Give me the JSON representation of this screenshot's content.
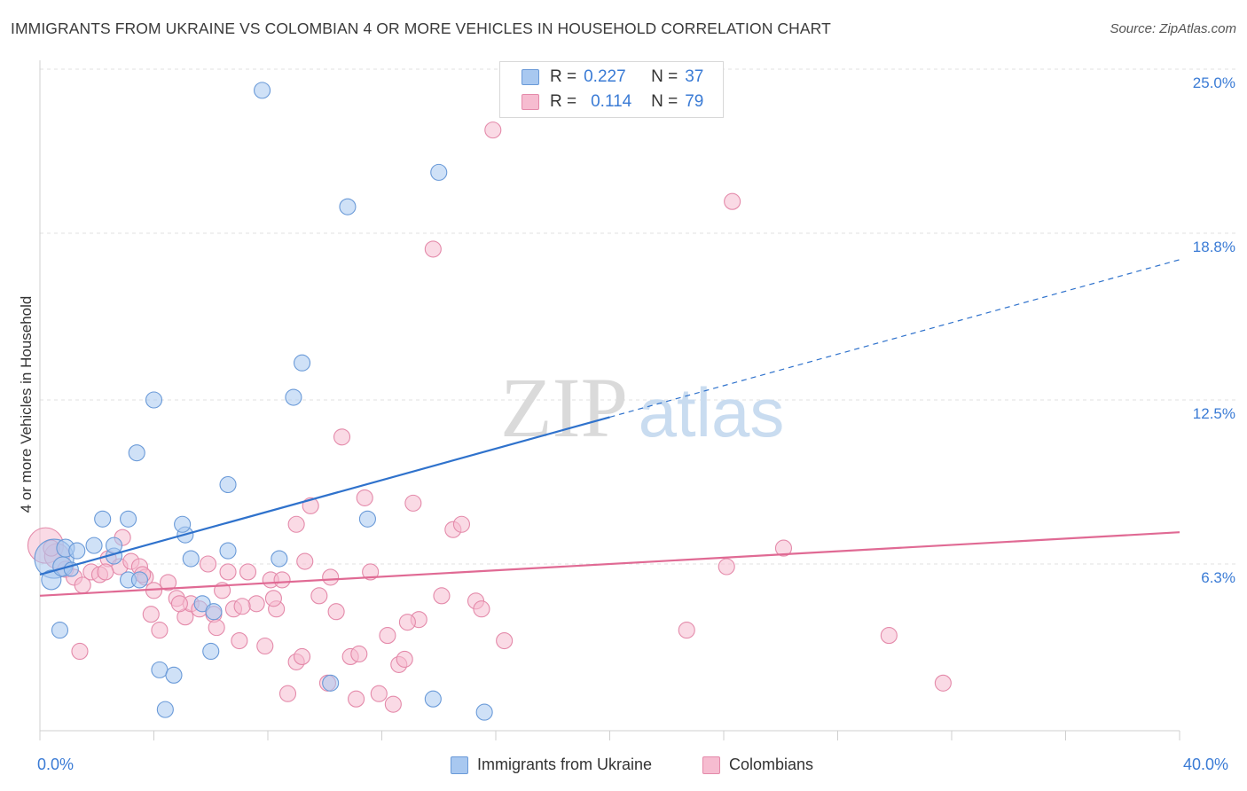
{
  "header": {
    "title": "IMMIGRANTS FROM UKRAINE VS COLOMBIAN 4 OR MORE VEHICLES IN HOUSEHOLD CORRELATION CHART",
    "source": "Source: ZipAtlas.com"
  },
  "watermark": {
    "zip": "ZIP",
    "atlas": "atlas"
  },
  "legend_top": {
    "rows": [
      {
        "r_label": "R =",
        "r_value": "0.227",
        "n_label": "N =",
        "n_value": "37"
      },
      {
        "r_label": "R =",
        "r_value": "0.114",
        "n_label": "N =",
        "n_value": "79"
      }
    ]
  },
  "legend_bottom": {
    "series_a": "Immigrants from Ukraine",
    "series_b": "Colombians"
  },
  "colors": {
    "ukraine_fill": "#a8c8f0",
    "ukraine_stroke": "#6a9ad8",
    "ukraine_line": "#2f72cc",
    "colombia_fill": "#f6bcd0",
    "colombia_stroke": "#e48aaa",
    "colombia_line": "#e06a94",
    "tick_text": "#3a7bd5"
  },
  "chart_data": {
    "type": "scatter",
    "title": "IMMIGRANTS FROM UKRAINE VS COLOMBIAN 4 OR MORE VEHICLES IN HOUSEHOLD CORRELATION CHART",
    "xlabel": "",
    "ylabel": "4 or more Vehicles in Household",
    "xlim": [
      0,
      40
    ],
    "ylim": [
      0,
      25
    ],
    "x_tick_labels": [
      "0.0%",
      "40.0%"
    ],
    "y_ticks": [
      6.3,
      12.5,
      18.8,
      25.0
    ],
    "y_tick_labels": [
      "6.3%",
      "12.5%",
      "18.8%",
      "25.0%"
    ],
    "grid": true,
    "series": [
      {
        "name": "Immigrants from Ukraine",
        "R": 0.227,
        "N": 37,
        "trend": {
          "x0": 0,
          "y0": 5.9,
          "x1": 40,
          "y1": 17.8,
          "solid_until_x": 20
        },
        "points": [
          [
            0.5,
            6.5,
            22
          ],
          [
            0.9,
            6.9,
            10
          ],
          [
            0.4,
            5.7,
            11
          ],
          [
            0.8,
            6.2,
            11
          ],
          [
            1.3,
            6.8,
            9
          ],
          [
            1.9,
            7.0,
            9
          ],
          [
            1.1,
            6.1,
            8
          ],
          [
            2.6,
            6.6,
            9
          ],
          [
            3.1,
            5.7,
            9
          ],
          [
            3.5,
            5.7,
            9
          ],
          [
            2.2,
            8.0,
            9
          ],
          [
            3.1,
            8.0,
            9
          ],
          [
            2.6,
            7.0,
            9
          ],
          [
            5.1,
            7.4,
            9
          ],
          [
            5.0,
            7.8,
            9
          ],
          [
            3.4,
            10.5,
            9
          ],
          [
            4.0,
            12.5,
            9
          ],
          [
            6.6,
            9.3,
            9
          ],
          [
            7.8,
            24.2,
            9
          ],
          [
            8.9,
            12.6,
            9
          ],
          [
            9.2,
            13.9,
            9
          ],
          [
            10.8,
            19.8,
            9
          ],
          [
            11.5,
            8.0,
            9
          ],
          [
            14.0,
            21.1,
            9
          ],
          [
            0.7,
            3.8,
            9
          ],
          [
            4.2,
            2.3,
            9
          ],
          [
            4.7,
            2.1,
            9
          ],
          [
            4.4,
            0.8,
            9
          ],
          [
            6.0,
            3.0,
            9
          ],
          [
            10.2,
            1.8,
            9
          ],
          [
            13.8,
            1.2,
            9
          ],
          [
            15.6,
            0.7,
            9
          ],
          [
            5.3,
            6.5,
            9
          ],
          [
            6.6,
            6.8,
            9
          ],
          [
            8.4,
            6.5,
            9
          ],
          [
            5.7,
            4.8,
            9
          ],
          [
            6.1,
            4.5,
            9
          ]
        ]
      },
      {
        "name": "Colombians",
        "R": 0.114,
        "N": 79,
        "trend": {
          "x0": 0,
          "y0": 5.1,
          "x1": 40,
          "y1": 7.5,
          "solid_until_x": 40
        },
        "points": [
          [
            0.2,
            7.0,
            20
          ],
          [
            0.6,
            6.6,
            14
          ],
          [
            0.9,
            6.1,
            9
          ],
          [
            1.2,
            5.8,
            9
          ],
          [
            1.5,
            5.5,
            9
          ],
          [
            1.8,
            6.0,
            9
          ],
          [
            2.1,
            5.9,
            9
          ],
          [
            2.4,
            6.5,
            9
          ],
          [
            2.8,
            6.2,
            9
          ],
          [
            2.9,
            7.3,
            9
          ],
          [
            3.2,
            6.4,
            9
          ],
          [
            3.5,
            6.2,
            9
          ],
          [
            3.7,
            5.8,
            9
          ],
          [
            4.0,
            5.3,
            9
          ],
          [
            4.2,
            3.8,
            9
          ],
          [
            3.9,
            4.4,
            9
          ],
          [
            4.5,
            5.6,
            9
          ],
          [
            4.8,
            5.0,
            9
          ],
          [
            5.1,
            4.3,
            9
          ],
          [
            5.3,
            4.8,
            9
          ],
          [
            5.6,
            4.6,
            9
          ],
          [
            5.9,
            6.3,
            9
          ],
          [
            6.1,
            4.4,
            9
          ],
          [
            6.4,
            5.3,
            9
          ],
          [
            6.6,
            6.0,
            9
          ],
          [
            6.8,
            4.6,
            9
          ],
          [
            7.0,
            3.4,
            9
          ],
          [
            7.3,
            6.0,
            9
          ],
          [
            7.6,
            4.8,
            9
          ],
          [
            7.9,
            3.2,
            9
          ],
          [
            8.1,
            5.7,
            9
          ],
          [
            8.3,
            4.6,
            9
          ],
          [
            8.5,
            5.7,
            9
          ],
          [
            8.7,
            1.4,
            9
          ],
          [
            9.0,
            2.6,
            9
          ],
          [
            9.2,
            2.8,
            9
          ],
          [
            9.5,
            8.5,
            9
          ],
          [
            9.0,
            7.8,
            9
          ],
          [
            9.8,
            5.1,
            9
          ],
          [
            10.1,
            1.8,
            9
          ],
          [
            10.4,
            4.5,
            9
          ],
          [
            10.6,
            11.1,
            9
          ],
          [
            10.9,
            2.8,
            9
          ],
          [
            11.1,
            1.2,
            9
          ],
          [
            11.4,
            8.8,
            9
          ],
          [
            11.6,
            6.0,
            9
          ],
          [
            11.9,
            1.4,
            9
          ],
          [
            12.2,
            3.6,
            9
          ],
          [
            12.4,
            1.0,
            9
          ],
          [
            12.6,
            2.5,
            9
          ],
          [
            12.8,
            2.7,
            9
          ],
          [
            13.1,
            8.6,
            9
          ],
          [
            13.3,
            4.2,
            9
          ],
          [
            13.8,
            18.2,
            9
          ],
          [
            14.1,
            5.1,
            9
          ],
          [
            14.5,
            7.6,
            9
          ],
          [
            14.8,
            7.8,
            9
          ],
          [
            15.3,
            4.9,
            9
          ],
          [
            15.5,
            4.6,
            9
          ],
          [
            15.9,
            22.7,
            9
          ],
          [
            16.3,
            3.4,
            9
          ],
          [
            22.7,
            3.8,
            9
          ],
          [
            24.1,
            6.2,
            9
          ],
          [
            24.3,
            20.0,
            9
          ],
          [
            26.1,
            6.9,
            9
          ],
          [
            29.8,
            3.6,
            9
          ],
          [
            31.7,
            1.8,
            9
          ],
          [
            1.4,
            3.0,
            9
          ],
          [
            2.3,
            6.0,
            9
          ],
          [
            3.6,
            5.9,
            9
          ],
          [
            4.9,
            4.8,
            9
          ],
          [
            6.2,
            3.9,
            9
          ],
          [
            7.1,
            4.7,
            9
          ],
          [
            8.2,
            5.0,
            9
          ],
          [
            9.3,
            6.4,
            9
          ],
          [
            10.2,
            5.8,
            9
          ],
          [
            11.2,
            2.9,
            9
          ],
          [
            12.9,
            4.1,
            9
          ],
          [
            0.4,
            6.9,
            9
          ]
        ]
      }
    ]
  }
}
